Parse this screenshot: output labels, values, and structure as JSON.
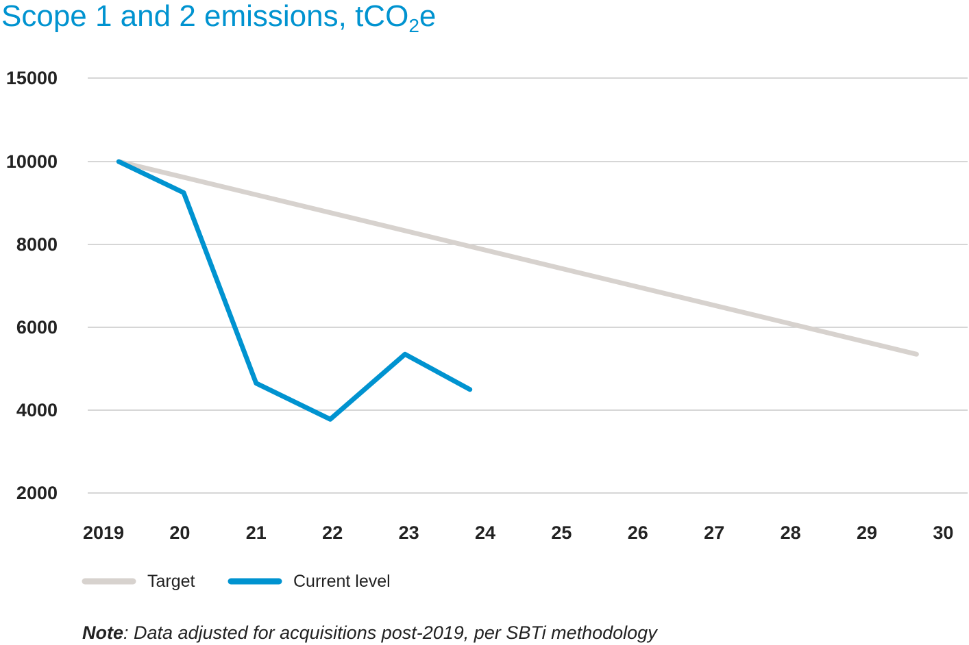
{
  "chart_data": {
    "type": "line",
    "title": "Scope 1 and 2 emissions, tCO",
    "title_subscript": "2",
    "title_suffix": "e",
    "xlabel": "",
    "ylabel": "",
    "categories": [
      "2019",
      "20",
      "21",
      "22",
      "23",
      "24",
      "25",
      "26",
      "27",
      "28",
      "29",
      "30"
    ],
    "y_ticks": [
      15000,
      10000,
      8000,
      6000,
      4000,
      2000
    ],
    "y_tick_labels": [
      "15000",
      "10000",
      "8000",
      "6000",
      "4000",
      "2000"
    ],
    "grid": true,
    "legend_position": "bottom-left",
    "series": [
      {
        "name": "Target",
        "color": "#d7d2ce",
        "x": [
          2019.2,
          2029.65
        ],
        "values": [
          10000,
          5350
        ]
      },
      {
        "name": "Current level",
        "color": "#0093d0",
        "x": [
          2019.2,
          2020.05,
          2021.0,
          2021.97,
          2022.95,
          2023.8
        ],
        "values": [
          10000,
          9250,
          4650,
          3780,
          5350,
          4500
        ]
      }
    ]
  },
  "note": {
    "bold": "Note",
    "text": ": Data adjusted for acquisitions post-2019, per SBTi methodology"
  }
}
